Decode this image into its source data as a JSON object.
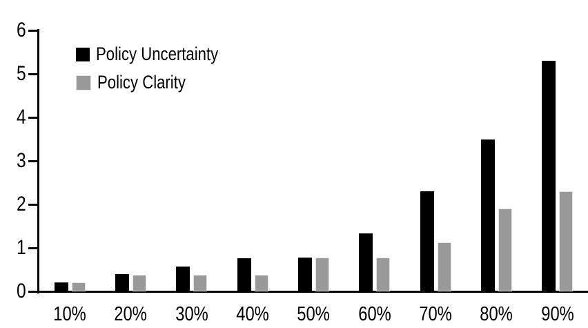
{
  "chart_data": {
    "type": "bar",
    "title": "",
    "xlabel": "",
    "ylabel": "",
    "categories": [
      "10%",
      "20%",
      "30%",
      "40%",
      "50%",
      "60%",
      "70%",
      "80%",
      "90%"
    ],
    "series": [
      {
        "name": "Policy Uncertainty",
        "color": "#000000",
        "values": [
          0.2,
          0.4,
          0.57,
          0.76,
          0.78,
          1.33,
          2.3,
          3.5,
          5.3
        ]
      },
      {
        "name": "Policy Clarity",
        "color": "#999999",
        "border_color": "#e3e3e3",
        "values": [
          0.2,
          0.38,
          0.38,
          0.38,
          0.77,
          0.77,
          1.13,
          1.9,
          2.3
        ]
      }
    ],
    "ylim": [
      0,
      6
    ],
    "yticks": [
      0,
      1,
      2,
      3,
      4,
      5,
      6
    ],
    "grid": false,
    "legend_position": "top-left-inside",
    "axis_color": "#000000",
    "background_color": "#ffffff"
  }
}
